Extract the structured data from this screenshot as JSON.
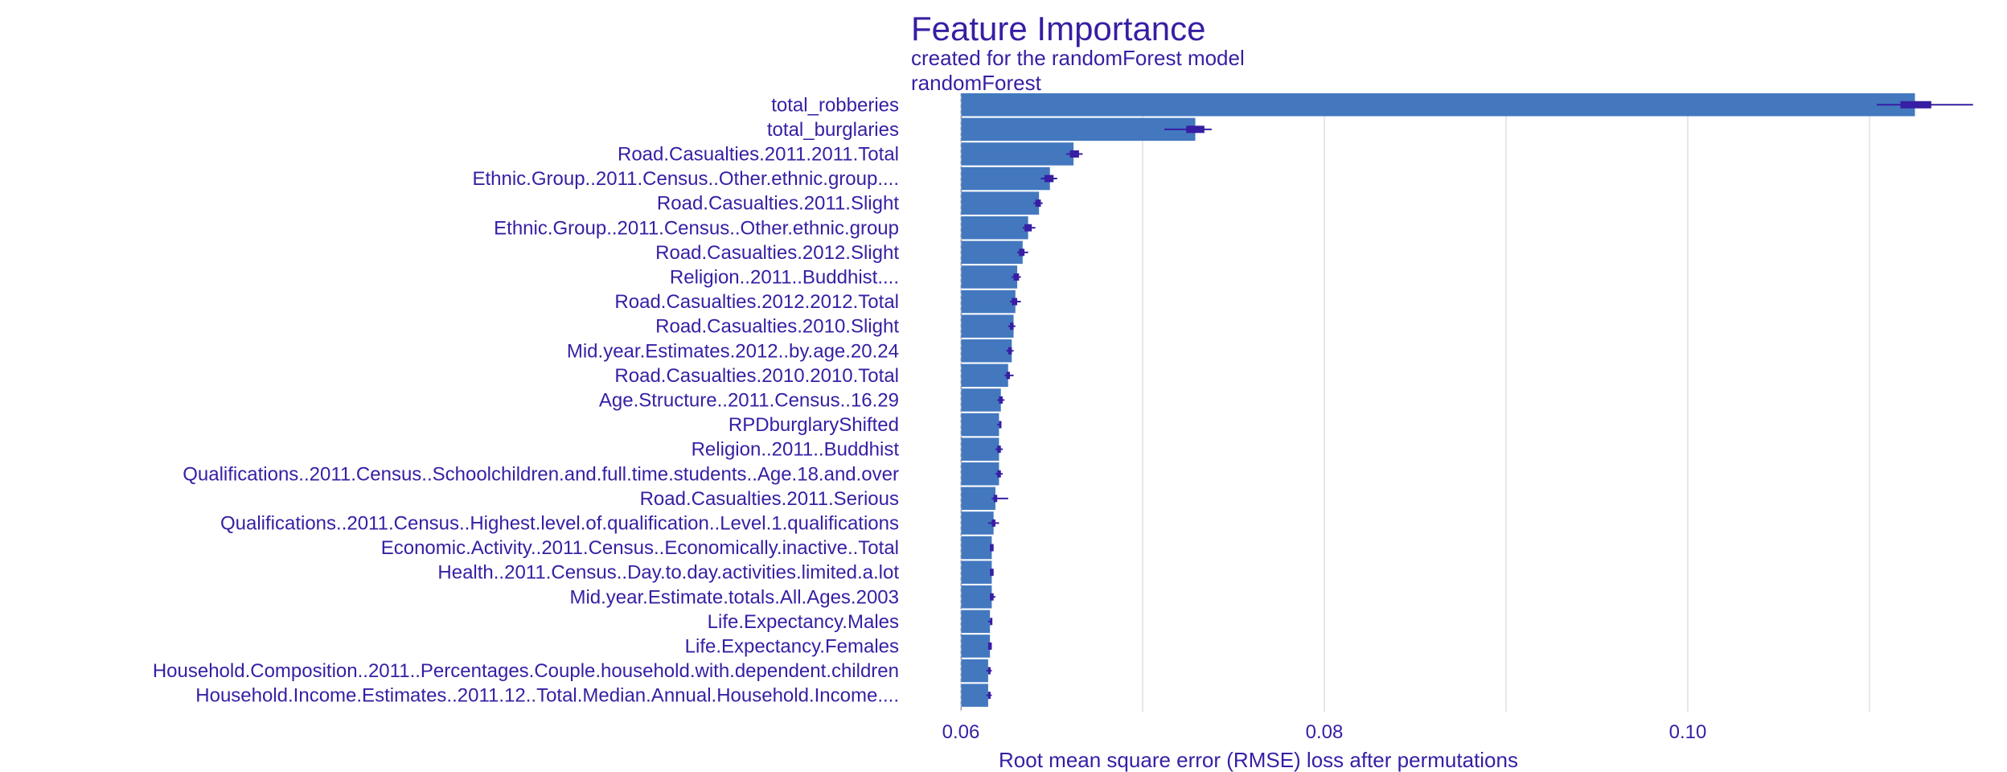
{
  "chart_data": {
    "type": "bar",
    "title": "Feature Importance",
    "subtitle": "created for the randomForest model",
    "panel_label": "randomForest",
    "xlabel": "Root mean square error (RMSE) loss after permutations",
    "ylabel": "",
    "baseline": 0.06002,
    "xlim": [
      0.06,
      0.116
    ],
    "xticks": [
      0.06,
      0.08,
      0.1
    ],
    "xtick_labels": [
      "0.06",
      "0.08",
      "0.10"
    ],
    "grid": true,
    "colors": {
      "bar": "#4378bf",
      "box": "#371ea3",
      "text": "#371ea3",
      "grid": "#dfe1e6"
    },
    "categories": [
      "total_robberies",
      "total_burglaries",
      "Road.Casualties.2011.2011.Total",
      "Ethnic.Group..2011.Census..Other.ethnic.group....",
      "Road.Casualties.2011.Slight",
      "Ethnic.Group..2011.Census..Other.ethnic.group",
      "Road.Casualties.2012.Slight",
      "Religion..2011..Buddhist....",
      "Road.Casualties.2012.2012.Total",
      "Road.Casualties.2010.Slight",
      "Mid.year.Estimates.2012..by.age.20.24",
      "Road.Casualties.2010.2010.Total",
      "Age.Structure..2011.Census..16.29",
      "RPDburglaryShifted",
      "Religion..2011..Buddhist",
      "Qualifications..2011.Census..Schoolchildren.and.full.time.students..Age.18.and.over",
      "Road.Casualties.2011.Serious",
      "Qualifications..2011.Census..Highest.level.of.qualification..Level.1.qualifications",
      "Economic.Activity..2011.Census..Economically.inactive..Total",
      "Health..2011.Census..Day.to.day.activities.limited.a.lot",
      "Mid.year.Estimate.totals.All.Ages.2003",
      "Life.Expectancy.Males",
      "Life.Expectancy.Females",
      "Household.Composition..2011..Percentages.Couple.household.with.dependent.children",
      "Household.Income.Estimates..2011.12..Total.Median.Annual.Household.Income...."
    ],
    "values": [
      0.1125,
      0.0729,
      0.0662,
      0.0649,
      0.0643,
      0.0637,
      0.0634,
      0.0631,
      0.063,
      0.0629,
      0.0628,
      0.0626,
      0.0622,
      0.0621,
      0.0621,
      0.0621,
      0.0619,
      0.0618,
      0.0617,
      0.0617,
      0.0617,
      0.0616,
      0.0616,
      0.0615,
      0.0615
    ],
    "boxplots": [
      {
        "min": 0.1104,
        "q1": 0.1117,
        "median": 0.1125,
        "q3": 0.1134,
        "max": 0.1157
      },
      {
        "min": 0.0712,
        "q1": 0.0724,
        "median": 0.0729,
        "q3": 0.0734,
        "max": 0.0738
      },
      {
        "min": 0.0658,
        "q1": 0.066,
        "median": 0.0662,
        "q3": 0.0665,
        "max": 0.0667
      },
      {
        "min": 0.0644,
        "q1": 0.0646,
        "median": 0.0649,
        "q3": 0.0651,
        "max": 0.0653
      },
      {
        "min": 0.064,
        "q1": 0.0641,
        "median": 0.0643,
        "q3": 0.0644,
        "max": 0.0645
      },
      {
        "min": 0.0634,
        "q1": 0.0635,
        "median": 0.0637,
        "q3": 0.0639,
        "max": 0.0641
      },
      {
        "min": 0.0631,
        "q1": 0.0632,
        "median": 0.0634,
        "q3": 0.0635,
        "max": 0.0637
      },
      {
        "min": 0.0628,
        "q1": 0.0629,
        "median": 0.0631,
        "q3": 0.0632,
        "max": 0.0633
      },
      {
        "min": 0.0627,
        "q1": 0.0628,
        "median": 0.063,
        "q3": 0.0631,
        "max": 0.0633
      },
      {
        "min": 0.0626,
        "q1": 0.0627,
        "median": 0.0628,
        "q3": 0.0629,
        "max": 0.063
      },
      {
        "min": 0.0625,
        "q1": 0.0626,
        "median": 0.0627,
        "q3": 0.0628,
        "max": 0.0629
      },
      {
        "min": 0.0624,
        "q1": 0.0625,
        "median": 0.0626,
        "q3": 0.0627,
        "max": 0.0629
      },
      {
        "min": 0.062,
        "q1": 0.0621,
        "median": 0.0622,
        "q3": 0.0623,
        "max": 0.0624
      },
      {
        "min": 0.062,
        "q1": 0.0621,
        "median": 0.0621,
        "q3": 0.0622,
        "max": 0.0622
      },
      {
        "min": 0.0619,
        "q1": 0.062,
        "median": 0.0621,
        "q3": 0.0622,
        "max": 0.0623
      },
      {
        "min": 0.0619,
        "q1": 0.062,
        "median": 0.0621,
        "q3": 0.0622,
        "max": 0.0623
      },
      {
        "min": 0.0617,
        "q1": 0.0618,
        "median": 0.0619,
        "q3": 0.062,
        "max": 0.0626
      },
      {
        "min": 0.0615,
        "q1": 0.0617,
        "median": 0.0618,
        "q3": 0.0619,
        "max": 0.0621
      },
      {
        "min": 0.0616,
        "q1": 0.0616,
        "median": 0.0617,
        "q3": 0.0618,
        "max": 0.0618
      },
      {
        "min": 0.0616,
        "q1": 0.0616,
        "median": 0.0617,
        "q3": 0.0618,
        "max": 0.0618
      },
      {
        "min": 0.0616,
        "q1": 0.0616,
        "median": 0.0617,
        "q3": 0.0618,
        "max": 0.0619
      },
      {
        "min": 0.0615,
        "q1": 0.0616,
        "median": 0.0616,
        "q3": 0.0617,
        "max": 0.0617
      },
      {
        "min": 0.0615,
        "q1": 0.0615,
        "median": 0.0616,
        "q3": 0.0617,
        "max": 0.0617
      },
      {
        "min": 0.0614,
        "q1": 0.0615,
        "median": 0.0615,
        "q3": 0.0616,
        "max": 0.0617
      },
      {
        "min": 0.0614,
        "q1": 0.0615,
        "median": 0.0615,
        "q3": 0.0616,
        "max": 0.0617
      }
    ]
  }
}
